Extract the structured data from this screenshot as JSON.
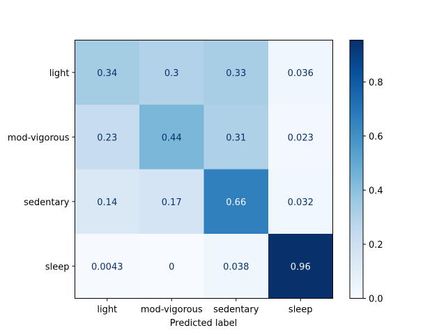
{
  "chart_data": {
    "type": "heatmap",
    "title": "",
    "xlabel": "Predicted label",
    "ylabel": "",
    "x_categories": [
      "light",
      "mod-vigorous",
      "sedentary",
      "sleep"
    ],
    "y_categories": [
      "light",
      "mod-vigorous",
      "sedentary",
      "sleep"
    ],
    "values": [
      [
        0.34,
        0.3,
        0.33,
        0.036
      ],
      [
        0.23,
        0.44,
        0.31,
        0.023
      ],
      [
        0.14,
        0.17,
        0.66,
        0.032
      ],
      [
        0.0043,
        0,
        0.038,
        0.96
      ]
    ],
    "cell_labels": [
      [
        "0.34",
        "0.3",
        "0.33",
        "0.036"
      ],
      [
        "0.23",
        "0.44",
        "0.31",
        "0.023"
      ],
      [
        "0.14",
        "0.17",
        "0.66",
        "0.032"
      ],
      [
        "0.0043",
        "0",
        "0.038",
        "0.96"
      ]
    ],
    "colormap": "Blues",
    "colorbar": {
      "range": [
        0.0,
        0.9544
      ],
      "ticks": [
        "0.0",
        "0.2",
        "0.4",
        "0.6",
        "0.8"
      ],
      "tick_values": [
        0.0,
        0.2,
        0.4,
        0.6,
        0.8
      ]
    },
    "text_color_dark": "#08306b",
    "text_color_light": "#f7fbff",
    "grid": false
  }
}
